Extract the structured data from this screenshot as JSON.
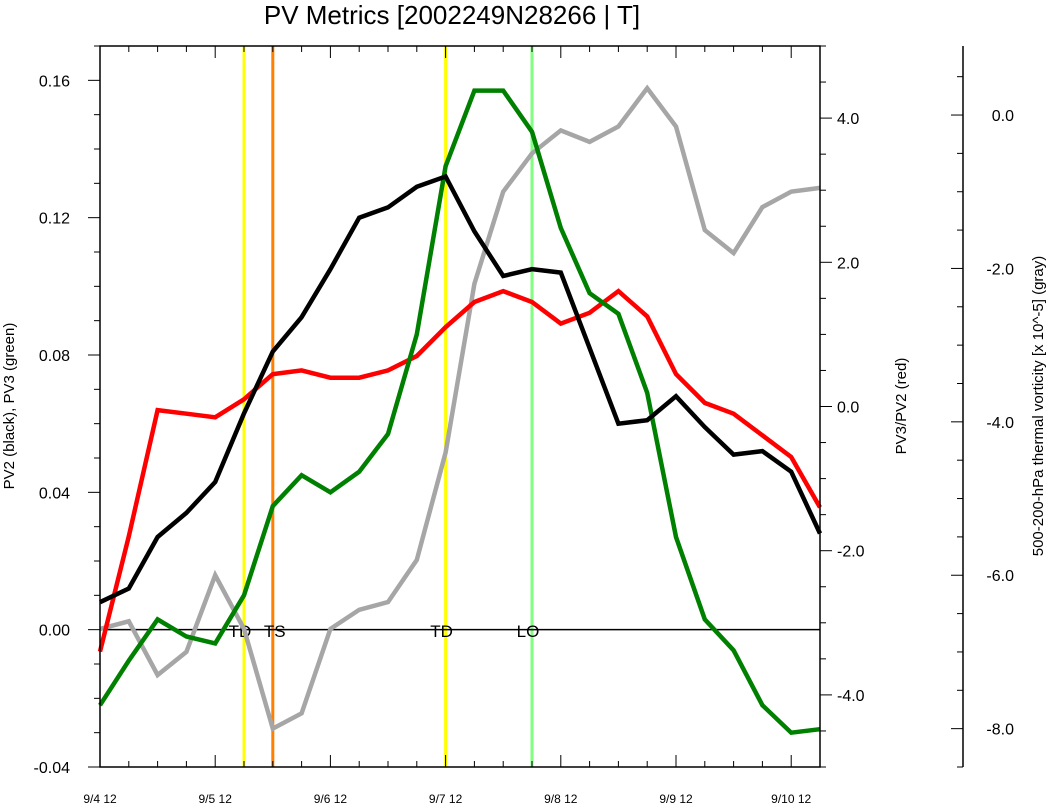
{
  "title": "PV Metrics [2002249N28266 | T]",
  "chart_data": {
    "type": "line",
    "title": "PV Metrics [2002249N28266 | T]",
    "x_tick_labels": [
      "9/4 12",
      "9/5 12",
      "9/6 12",
      "9/7 12",
      "9/8 12",
      "9/9 12",
      "9/10 12"
    ],
    "x_ticks": [
      0,
      4,
      8,
      12,
      16,
      20,
      24
    ],
    "xlim": [
      0,
      25
    ],
    "x_unit_note": "6-hourly steps from 9/4 12",
    "axes": {
      "left": {
        "label": "PV2 (black), PV3 (green)",
        "ylim": [
          -0.04,
          0.17
        ],
        "ticks": [
          -0.04,
          0.0,
          0.04,
          0.08,
          0.12,
          0.16
        ],
        "tick_labels": [
          "-0.04",
          "0.00",
          "0.04",
          "0.08",
          "0.12",
          "0.16"
        ]
      },
      "right": {
        "label": "PV3/PV2 (red)",
        "ylim": [
          -5.0,
          5.0
        ],
        "ticks": [
          -4.0,
          -2.0,
          0.0,
          2.0,
          4.0
        ],
        "tick_labels": [
          "-4.0",
          "-2.0",
          "0.0",
          "2.0",
          "4.0"
        ]
      },
      "far_right": {
        "label": "500-200-hPa thermal vorticity [x 10^-5] (gray)",
        "ylim": [
          -8.5,
          0.9
        ],
        "ticks": [
          -8.0,
          -6.0,
          -4.0,
          -2.0,
          0.0
        ],
        "tick_labels": [
          "-8.0",
          "-6.0",
          "-4.0",
          "-2.0",
          "0.0"
        ]
      }
    },
    "series": [
      {
        "name": "PV2",
        "axis": "left",
        "color": "#000000",
        "x": [
          0,
          1,
          2,
          3,
          4,
          5,
          6,
          7,
          8,
          9,
          10,
          11,
          12,
          13,
          14,
          15,
          16,
          17,
          18,
          19,
          20,
          21,
          22,
          23,
          24,
          25
        ],
        "values": [
          0.008,
          0.012,
          0.027,
          0.034,
          0.043,
          0.063,
          0.081,
          0.091,
          0.105,
          0.12,
          0.123,
          0.129,
          0.132,
          0.116,
          0.103,
          0.105,
          0.104,
          0.082,
          0.06,
          0.061,
          0.068,
          0.059,
          0.051,
          0.052,
          0.046,
          0.028
        ]
      },
      {
        "name": "PV3",
        "axis": "left",
        "color": "#008000",
        "x": [
          0,
          1,
          2,
          3,
          4,
          5,
          6,
          7,
          8,
          9,
          10,
          11,
          12,
          13,
          14,
          15,
          16,
          17,
          18,
          19,
          20,
          21,
          22,
          23,
          24,
          25
        ],
        "values": [
          -0.022,
          -0.009,
          0.003,
          -0.002,
          -0.004,
          0.01,
          0.036,
          0.045,
          0.04,
          0.046,
          0.057,
          0.086,
          0.135,
          0.157,
          0.157,
          0.145,
          0.117,
          0.098,
          0.092,
          0.069,
          0.027,
          0.003,
          -0.006,
          -0.022,
          -0.03,
          -0.029
        ]
      },
      {
        "name": "PV3/PV2",
        "axis": "right",
        "color": "#ff0000",
        "x": [
          0,
          1,
          2,
          3,
          4,
          5,
          6,
          7,
          8,
          9,
          10,
          11,
          12,
          13,
          14,
          15,
          16,
          17,
          18,
          19,
          20,
          21,
          22,
          23,
          24,
          25
        ],
        "values": [
          -3.4,
          -1.8,
          -0.05,
          -0.1,
          -0.15,
          0.1,
          0.45,
          0.5,
          0.4,
          0.4,
          0.5,
          0.7,
          1.1,
          1.45,
          1.6,
          1.45,
          1.15,
          1.3,
          1.6,
          1.25,
          0.45,
          0.05,
          -0.1,
          -0.4,
          -0.7,
          -1.4
        ]
      },
      {
        "name": "500-200-hPa thermal vorticity",
        "axis": "far_right",
        "color": "#a6a6a6",
        "x": [
          0,
          1,
          2,
          3,
          4,
          5,
          6,
          7,
          8,
          9,
          10,
          11,
          12,
          13,
          14,
          15,
          16,
          17,
          18,
          19,
          20,
          21,
          22,
          23,
          24,
          25
        ],
        "values": [
          -6.7,
          -6.6,
          -7.3,
          -7.0,
          -6.0,
          -6.7,
          -8.0,
          -7.8,
          -6.7,
          -6.45,
          -6.35,
          -5.8,
          -4.4,
          -2.2,
          -1.0,
          -0.5,
          -0.2,
          -0.35,
          -0.15,
          0.35,
          -0.15,
          -1.5,
          -1.8,
          -1.2,
          -1.0,
          -0.95
        ]
      }
    ],
    "markers": [
      {
        "x": 5,
        "color": "#ffff00",
        "label": "TD"
      },
      {
        "x": 6,
        "color": "#ff7f00",
        "label": "TS"
      },
      {
        "x": 12,
        "color": "#ffff00",
        "label": "TD"
      },
      {
        "x": 15,
        "color": "#80ff80",
        "label": "LO"
      }
    ],
    "zero_line": 0.0,
    "grid": false
  }
}
